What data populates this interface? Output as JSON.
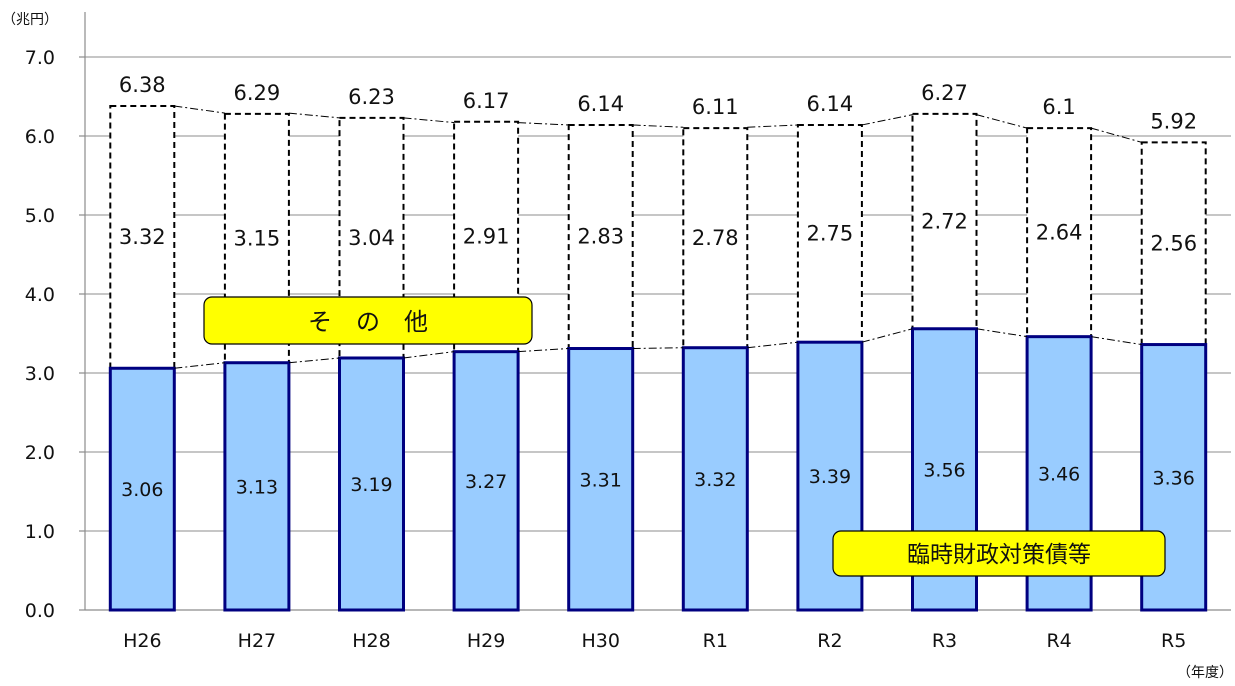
{
  "chart_data": {
    "type": "bar",
    "stacked": true,
    "y_unit_label": "（兆円）",
    "x_unit_label": "（年度）",
    "ylim": [
      0,
      7
    ],
    "yticks": [
      "0.0",
      "1.0",
      "2.0",
      "3.0",
      "4.0",
      "5.0",
      "6.0",
      "7.0"
    ],
    "grid": true,
    "categories": [
      "H26",
      "H27",
      "H28",
      "H29",
      "H30",
      "R1",
      "R2",
      "R3",
      "R4",
      "R5"
    ],
    "series": [
      {
        "name": "臨時財政対策債等",
        "values": [
          3.06,
          3.13,
          3.19,
          3.27,
          3.31,
          3.32,
          3.39,
          3.56,
          3.46,
          3.36
        ],
        "color": "#99ccff",
        "border": "#000080"
      },
      {
        "name": "そ　の　他",
        "values": [
          3.32,
          3.15,
          3.04,
          2.91,
          2.83,
          2.78,
          2.75,
          2.72,
          2.64,
          2.56
        ],
        "color": "#ffffff",
        "border": "#000000",
        "style": "dashed"
      }
    ],
    "totals": [
      6.38,
      6.29,
      6.23,
      6.17,
      6.14,
      6.11,
      6.14,
      6.27,
      6.1,
      5.92
    ],
    "bottom_labels": [
      "3.06",
      "3.13",
      "3.19",
      "3.27",
      "3.31",
      "3.32",
      "3.39",
      "3.56",
      "3.46",
      "3.36"
    ],
    "top_labels": [
      "3.32",
      "3.15",
      "3.04",
      "2.91",
      "2.83",
      "2.78",
      "2.75",
      "2.72",
      "2.64",
      "2.56"
    ],
    "total_labels": [
      "6.38",
      "6.29",
      "6.23",
      "6.17",
      "6.14",
      "6.11",
      "6.14",
      "6.27",
      "6.1",
      "5.92"
    ],
    "callouts": {
      "other": "そ　の　他",
      "bonds": "臨時財政対策債等",
      "callout_color": "#ffff00"
    }
  }
}
